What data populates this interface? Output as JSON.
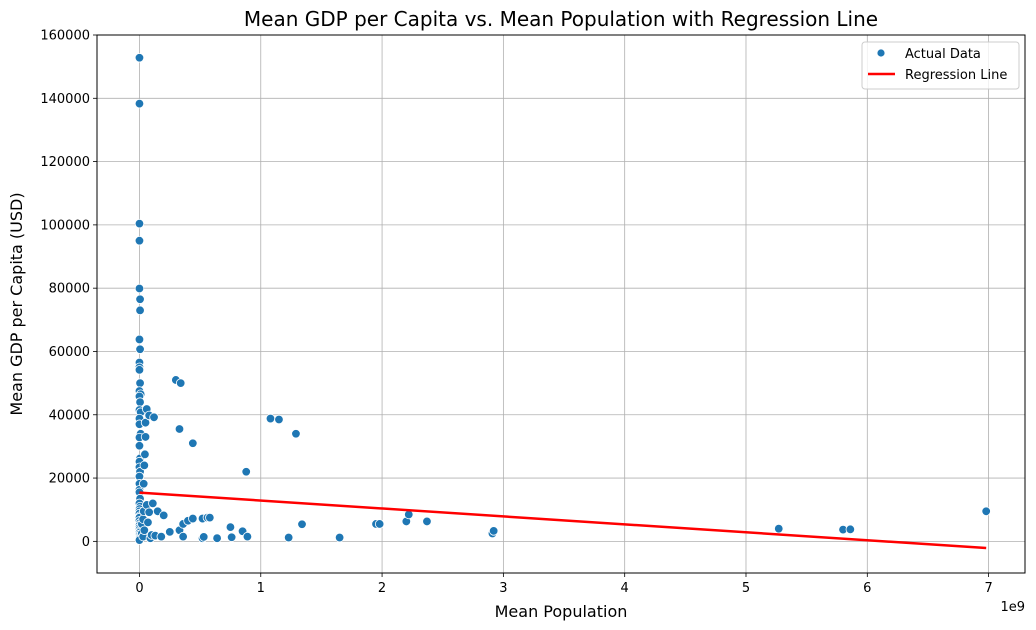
{
  "chart_data": {
    "type": "scatter",
    "title": "Mean GDP per Capita vs. Mean Population with Regression Line",
    "xlabel": "Mean Population",
    "ylabel": "Mean GDP per Capita (USD)",
    "x_offset_label": "1e9",
    "x_scale": 1000000000,
    "xlim": [
      -0.35,
      7.3
    ],
    "ylim": [
      -10000,
      160000
    ],
    "xticks": [
      0,
      1,
      2,
      3,
      4,
      5,
      6,
      7
    ],
    "xtick_labels": [
      "0",
      "1",
      "2",
      "3",
      "4",
      "5",
      "6",
      "7"
    ],
    "yticks": [
      0,
      20000,
      40000,
      60000,
      80000,
      100000,
      120000,
      140000,
      160000
    ],
    "ytick_labels": [
      "0",
      "20000",
      "40000",
      "60000",
      "80000",
      "100000",
      "120000",
      "140000",
      "160000"
    ],
    "grid": true,
    "legend_position": "top-right",
    "series": [
      {
        "name": "Actual Data",
        "kind": "scatter",
        "color": "#1f77b4",
        "points": [
          [
            0.0,
            152800
          ],
          [
            0.0,
            138300
          ],
          [
            0.0,
            100400
          ],
          [
            0.0,
            95000
          ],
          [
            0.0,
            79900
          ],
          [
            0.005,
            76500
          ],
          [
            0.005,
            73000
          ],
          [
            0.0,
            63800
          ],
          [
            0.005,
            60700
          ],
          [
            0.0,
            56500
          ],
          [
            0.0,
            55000
          ],
          [
            0.0,
            54200
          ],
          [
            0.005,
            50000
          ],
          [
            0.0,
            47500
          ],
          [
            0.01,
            46500
          ],
          [
            0.0,
            45800
          ],
          [
            0.005,
            44000
          ],
          [
            0.0,
            41500
          ],
          [
            0.01,
            40800
          ],
          [
            0.0,
            38800
          ],
          [
            0.0,
            37000
          ],
          [
            0.01,
            34000
          ],
          [
            0.0,
            32800
          ],
          [
            0.0,
            30200
          ],
          [
            0.005,
            26200
          ],
          [
            0.0,
            25200
          ],
          [
            0.0,
            23400
          ],
          [
            0.005,
            22000
          ],
          [
            0.0,
            20500
          ],
          [
            0.0,
            18200
          ],
          [
            0.0,
            16300
          ],
          [
            0.0,
            15500
          ],
          [
            0.005,
            13500
          ],
          [
            0.0,
            12000
          ],
          [
            0.005,
            11000
          ],
          [
            0.0,
            10200
          ],
          [
            0.0,
            9500
          ],
          [
            0.0,
            8800
          ],
          [
            0.005,
            8000
          ],
          [
            0.0,
            7500
          ],
          [
            0.0,
            6500
          ],
          [
            0.005,
            5800
          ],
          [
            0.0,
            5000
          ],
          [
            0.0,
            4300
          ],
          [
            0.0,
            3700
          ],
          [
            0.005,
            3200
          ],
          [
            0.0,
            2700
          ],
          [
            0.0,
            2200
          ],
          [
            0.0,
            1700
          ],
          [
            0.0,
            1200
          ],
          [
            0.0,
            800
          ],
          [
            0.0,
            400
          ],
          [
            0.02,
            2500
          ],
          [
            0.02,
            5500
          ],
          [
            0.03,
            7000
          ],
          [
            0.035,
            9500
          ],
          [
            0.035,
            18200
          ],
          [
            0.04,
            24000
          ],
          [
            0.045,
            27500
          ],
          [
            0.05,
            33000
          ],
          [
            0.05,
            37500
          ],
          [
            0.06,
            41800
          ],
          [
            0.08,
            39800
          ],
          [
            0.12,
            39200
          ],
          [
            0.03,
            1500
          ],
          [
            0.04,
            3500
          ],
          [
            0.06,
            11500
          ],
          [
            0.07,
            6000
          ],
          [
            0.08,
            9200
          ],
          [
            0.09,
            1000
          ],
          [
            0.1,
            2000
          ],
          [
            0.11,
            12000
          ],
          [
            0.13,
            1800
          ],
          [
            0.15,
            9500
          ],
          [
            0.18,
            1500
          ],
          [
            0.2,
            8200
          ],
          [
            0.25,
            3000
          ],
          [
            0.3,
            51000
          ],
          [
            0.34,
            50000
          ],
          [
            0.33,
            35500
          ],
          [
            0.33,
            3500
          ],
          [
            0.36,
            1500
          ],
          [
            0.36,
            5500
          ],
          [
            0.4,
            6500
          ],
          [
            0.44,
            7200
          ],
          [
            0.44,
            31000
          ],
          [
            0.52,
            7200
          ],
          [
            0.52,
            1000
          ],
          [
            0.53,
            1400
          ],
          [
            0.56,
            7500
          ],
          [
            0.58,
            7500
          ],
          [
            0.64,
            1000
          ],
          [
            0.75,
            4500
          ],
          [
            0.76,
            1300
          ],
          [
            0.85,
            3200
          ],
          [
            0.88,
            22000
          ],
          [
            0.89,
            1500
          ],
          [
            1.08,
            38800
          ],
          [
            1.15,
            38500
          ],
          [
            1.23,
            1200
          ],
          [
            1.29,
            34000
          ],
          [
            1.34,
            5400
          ],
          [
            1.65,
            1200
          ],
          [
            1.95,
            5500
          ],
          [
            1.98,
            5500
          ],
          [
            2.2,
            6300
          ],
          [
            2.22,
            8500
          ],
          [
            2.37,
            6300
          ],
          [
            2.91,
            2500
          ],
          [
            2.92,
            3300
          ],
          [
            5.27,
            4000
          ],
          [
            5.8,
            3700
          ],
          [
            5.86,
            3800
          ],
          [
            6.98,
            9500
          ]
        ]
      },
      {
        "name": "Regression Line",
        "kind": "line",
        "color": "#ff0000",
        "points": [
          [
            0,
            15400
          ],
          [
            6.98,
            -2100
          ]
        ]
      }
    ]
  }
}
